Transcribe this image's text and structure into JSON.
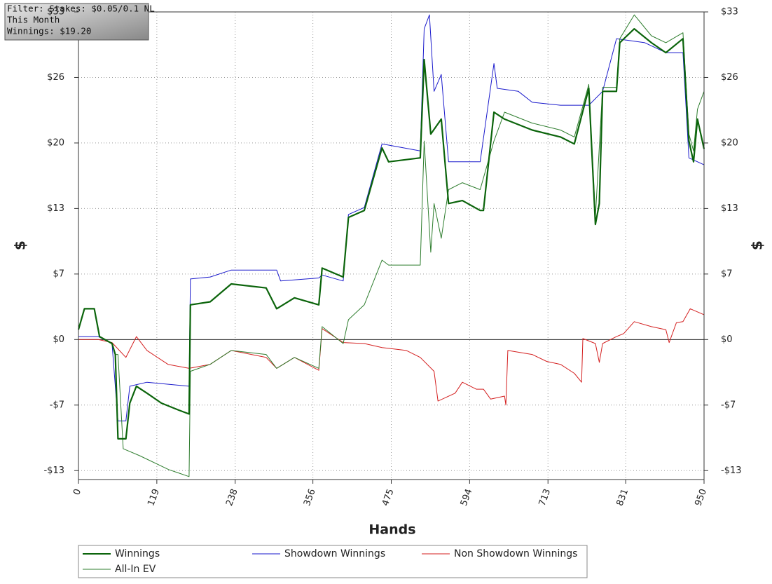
{
  "chart_data": {
    "type": "line",
    "annotation": [
      "Filter: Stakes: $0.05/0.1 NL",
      "This Month",
      "Winnings: $19.20"
    ],
    "xlabel": "Hands",
    "ylabel": "$",
    "y2label": "$",
    "xlim": [
      0,
      950
    ],
    "xticks": [
      0,
      119,
      238,
      356,
      475,
      594,
      713,
      831,
      950
    ],
    "ylim": [
      -14.1,
      33
    ],
    "yticks": [
      {
        "value": -13.2,
        "label": "-$13"
      },
      {
        "value": -6.6,
        "label": "-$7"
      },
      {
        "value": 0,
        "label": "$0"
      },
      {
        "value": 6.6,
        "label": "$7"
      },
      {
        "value": 13.2,
        "label": "$13"
      },
      {
        "value": 19.8,
        "label": "$20"
      },
      {
        "value": 26.4,
        "label": "$26"
      },
      {
        "value": 33,
        "label": "$33"
      }
    ],
    "y2lim": [
      -14.1,
      33
    ],
    "y2ticks": [
      {
        "value": -13.2,
        "label": "-$13"
      },
      {
        "value": -6.6,
        "label": "-$7"
      },
      {
        "value": 0,
        "label": "$0"
      },
      {
        "value": 6.6,
        "label": "$7"
      },
      {
        "value": 13.2,
        "label": "$13"
      },
      {
        "value": 19.8,
        "label": "$20"
      },
      {
        "value": 26.4,
        "label": "$26"
      },
      {
        "value": 33,
        "label": "$33"
      }
    ],
    "grid": true,
    "series": [
      {
        "name": "Winnings",
        "color": "#0b640b",
        "x": [
          0,
          9,
          24,
          32,
          51,
          56,
          60,
          72,
          78,
          88,
          104,
          126,
          152,
          168,
          170,
          200,
          232,
          285,
          301,
          328,
          365,
          370,
          402,
          410,
          434,
          461,
          471,
          519,
          525,
          535,
          551,
          562,
          583,
          610,
          615,
          631,
          647,
          689,
          732,
          753,
          775,
          785,
          791,
          796,
          817,
          822,
          844,
          870,
          892,
          918,
          927,
          934,
          940,
          950
        ],
        "values": [
          1.0,
          3.1,
          3.1,
          0.3,
          -0.4,
          -1.5,
          -10.0,
          -10.0,
          -6.4,
          -4.7,
          -5.4,
          -6.4,
          -7.1,
          -7.5,
          3.5,
          3.8,
          5.6,
          5.2,
          3.1,
          4.2,
          3.5,
          7.2,
          6.3,
          12.3,
          13.0,
          19.3,
          17.9,
          18.3,
          28.2,
          20.7,
          22.2,
          13.7,
          14.0,
          13.0,
          13.0,
          22.9,
          22.2,
          21.1,
          20.4,
          19.7,
          25.3,
          11.6,
          13.7,
          25.0,
          25.0,
          29.9,
          31.3,
          29.9,
          28.9,
          30.3,
          20.0,
          17.9,
          22.2,
          19.2
        ]
      },
      {
        "name": "All-In EV",
        "color": "#2e7d2e",
        "x": [
          0,
          9,
          24,
          32,
          51,
          56,
          60,
          68,
          93,
          137,
          168,
          170,
          200,
          232,
          285,
          301,
          328,
          365,
          370,
          402,
          410,
          434,
          461,
          471,
          519,
          525,
          535,
          540,
          551,
          562,
          583,
          610,
          631,
          647,
          689,
          732,
          753,
          775,
          785,
          796,
          817,
          822,
          844,
          870,
          892,
          918,
          927,
          934,
          940,
          950
        ],
        "values": [
          1.0,
          3.1,
          3.1,
          0.3,
          -0.4,
          -1.5,
          -1.5,
          -11.0,
          -11.7,
          -13.1,
          -13.8,
          -3.2,
          -2.5,
          -1.1,
          -1.5,
          -2.9,
          -1.8,
          -2.9,
          1.3,
          -0.4,
          2.0,
          3.5,
          8.0,
          7.5,
          7.5,
          20.0,
          8.8,
          13.7,
          10.2,
          15.1,
          15.8,
          15.1,
          20.0,
          22.9,
          21.8,
          21.1,
          20.4,
          25.7,
          12.3,
          25.4,
          25.4,
          30.3,
          32.7,
          30.6,
          29.9,
          30.9,
          20.7,
          19.0,
          23.2,
          25.0
        ]
      },
      {
        "name": "Showdown Winnings",
        "color": "#1a1acc",
        "x": [
          0,
          30,
          51,
          60,
          72,
          78,
          104,
          168,
          170,
          200,
          232,
          301,
          307,
          365,
          370,
          402,
          410,
          434,
          461,
          519,
          525,
          533,
          540,
          551,
          562,
          610,
          631,
          636,
          668,
          689,
          732,
          775,
          796,
          817,
          860,
          892,
          918,
          927,
          950
        ],
        "values": [
          0.3,
          0.3,
          -0.4,
          -8.2,
          -8.2,
          -4.7,
          -4.3,
          -4.7,
          6.1,
          6.3,
          7.0,
          7.0,
          5.9,
          6.2,
          6.5,
          5.9,
          12.6,
          13.3,
          19.7,
          19.0,
          31.3,
          32.7,
          25.0,
          26.7,
          17.9,
          17.9,
          27.8,
          25.3,
          25.0,
          23.9,
          23.6,
          23.6,
          25.0,
          30.3,
          29.9,
          28.9,
          28.9,
          18.3,
          17.6
        ]
      },
      {
        "name": "Non Showdown Winnings",
        "color": "#d42020",
        "x": [
          0,
          30,
          51,
          72,
          88,
          104,
          136,
          168,
          200,
          232,
          285,
          301,
          328,
          365,
          370,
          402,
          434,
          461,
          498,
          519,
          540,
          546,
          572,
          583,
          604,
          615,
          626,
          647,
          649,
          652,
          689,
          711,
          732,
          753,
          764,
          766,
          785,
          791,
          796,
          817,
          828,
          844,
          870,
          892,
          897,
          908,
          918,
          929,
          950
        ],
        "values": [
          0,
          0,
          -0.3,
          -1.8,
          0.3,
          -1.1,
          -2.5,
          -2.9,
          -2.5,
          -1.1,
          -1.8,
          -2.9,
          -1.8,
          -3.1,
          1.1,
          -0.3,
          -0.4,
          -0.8,
          -1.1,
          -1.8,
          -3.2,
          -6.2,
          -5.4,
          -4.3,
          -5.0,
          -5.0,
          -6.0,
          -5.7,
          -6.6,
          -1.1,
          -1.5,
          -2.2,
          -2.5,
          -3.4,
          -4.3,
          0.1,
          -0.4,
          -2.3,
          -0.4,
          0.3,
          0.6,
          1.8,
          1.3,
          1.0,
          -0.3,
          1.7,
          1.8,
          3.1,
          2.5
        ]
      }
    ]
  }
}
